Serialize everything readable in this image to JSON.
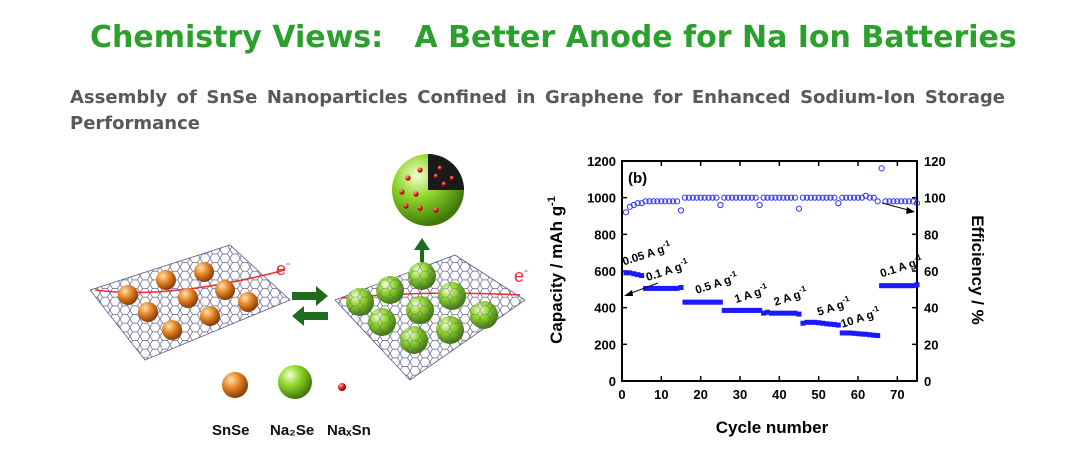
{
  "header": {
    "title": "Chemistry Views:   A Better Anode for Na Ion Batteries",
    "subtitle": "Assembly of SnSe Nanoparticles Confined in Graphene for Enhanced Sodium-Ion Storage Performance"
  },
  "illustration": {
    "electron_left": "e",
    "electron_right": "e",
    "electron_sup": "-",
    "legend": [
      {
        "label": "SnSe",
        "color": "#e07b1c"
      },
      {
        "label": "Na₂Se",
        "color": "#7cc41f"
      },
      {
        "label": "NaₓSn",
        "color": "#dd1111"
      }
    ],
    "colors": {
      "lattice": "#5a5a8a",
      "arrow": "#1f6b1f",
      "electron": "#e83030"
    }
  },
  "chart_data": {
    "type": "scatter",
    "panel_label": "(b)",
    "xlabel": "Cycle number",
    "ylabel": "Capacity / mAh g",
    "ylabel_sup": "-1",
    "y2label": "Efficiency / %",
    "xlim": [
      0,
      75
    ],
    "ylim": [
      0,
      1200
    ],
    "y2lim": [
      0,
      120
    ],
    "xticks": [
      0,
      10,
      20,
      30,
      40,
      50,
      60,
      70
    ],
    "yticks": [
      0,
      200,
      400,
      600,
      800,
      1000,
      1200
    ],
    "y2ticks": [
      0,
      20,
      40,
      60,
      80,
      100,
      120
    ],
    "grid": false,
    "colors": {
      "capacity": "#1a1aff",
      "efficiency": "#3333ff",
      "axis": "#000000"
    },
    "rate_labels": [
      {
        "text": "0.05 A g",
        "sup": "-1",
        "x": 0.5,
        "y": 630
      },
      {
        "text": "0.1 A g",
        "sup": "-1",
        "x": 6.5,
        "y": 545
      },
      {
        "text": "0.5 A g",
        "sup": "-1",
        "x": 19,
        "y": 475
      },
      {
        "text": "1 A g",
        "sup": "-1",
        "x": 29,
        "y": 425
      },
      {
        "text": "2 A g",
        "sup": "-1",
        "x": 39,
        "y": 410
      },
      {
        "text": "5 A g",
        "sup": "-1",
        "x": 50,
        "y": 355
      },
      {
        "text": "10 A g",
        "sup": "-1",
        "x": 56,
        "y": 290
      },
      {
        "text": "0.1 A g",
        "sup": "-1",
        "x": 66,
        "y": 565
      }
    ],
    "series": [
      {
        "role": "capacity",
        "x": [
          1,
          2,
          3,
          4,
          5,
          6,
          7,
          8,
          9,
          10,
          11,
          12,
          13,
          14,
          15,
          16,
          17,
          18,
          19,
          20,
          21,
          22,
          23,
          24,
          25,
          26,
          27,
          28,
          29,
          30,
          31,
          32,
          33,
          34,
          35,
          36,
          37,
          38,
          39,
          40,
          41,
          42,
          43,
          44,
          45,
          46,
          47,
          48,
          49,
          50,
          51,
          52,
          53,
          54,
          55,
          56,
          57,
          58,
          59,
          60,
          61,
          62,
          63,
          64,
          65,
          66,
          67,
          68,
          69,
          70,
          71,
          72,
          73,
          74,
          75
        ],
        "values": [
          590,
          590,
          585,
          580,
          575,
          505,
          505,
          505,
          505,
          505,
          505,
          505,
          505,
          505,
          510,
          430,
          430,
          430,
          430,
          430,
          430,
          430,
          430,
          430,
          430,
          385,
          385,
          385,
          385,
          385,
          385,
          385,
          385,
          385,
          385,
          370,
          375,
          370,
          370,
          370,
          370,
          370,
          370,
          370,
          365,
          315,
          320,
          320,
          320,
          318,
          315,
          312,
          310,
          308,
          305,
          262,
          262,
          262,
          260,
          258,
          256,
          255,
          252,
          250,
          248,
          520,
          520,
          520,
          520,
          520,
          520,
          520,
          520,
          520,
          525
        ]
      },
      {
        "role": "efficiency",
        "x": [
          1,
          2,
          3,
          4,
          5,
          6,
          7,
          8,
          9,
          10,
          11,
          12,
          13,
          14,
          15,
          16,
          17,
          18,
          19,
          20,
          21,
          22,
          23,
          24,
          25,
          26,
          27,
          28,
          29,
          30,
          31,
          32,
          33,
          34,
          35,
          36,
          37,
          38,
          39,
          40,
          41,
          42,
          43,
          44,
          45,
          46,
          47,
          48,
          49,
          50,
          51,
          52,
          53,
          54,
          55,
          56,
          57,
          58,
          59,
          60,
          61,
          62,
          63,
          64,
          65,
          66,
          67,
          68,
          69,
          70,
          71,
          72,
          73,
          74,
          75
        ],
        "values": [
          92,
          95,
          96,
          97,
          97,
          98,
          98,
          98,
          98,
          98,
          98,
          98,
          98,
          98,
          93,
          100,
          100,
          100,
          100,
          100,
          100,
          100,
          100,
          100,
          96,
          100,
          100,
          100,
          100,
          100,
          100,
          100,
          100,
          100,
          96,
          100,
          100,
          100,
          100,
          100,
          100,
          100,
          100,
          100,
          94,
          100,
          100,
          100,
          100,
          100,
          100,
          100,
          100,
          100,
          97,
          100,
          100,
          100,
          100,
          100,
          100,
          101,
          100,
          100,
          98,
          116,
          98,
          98,
          98,
          98,
          98,
          98,
          98,
          98,
          97
        ]
      }
    ]
  }
}
